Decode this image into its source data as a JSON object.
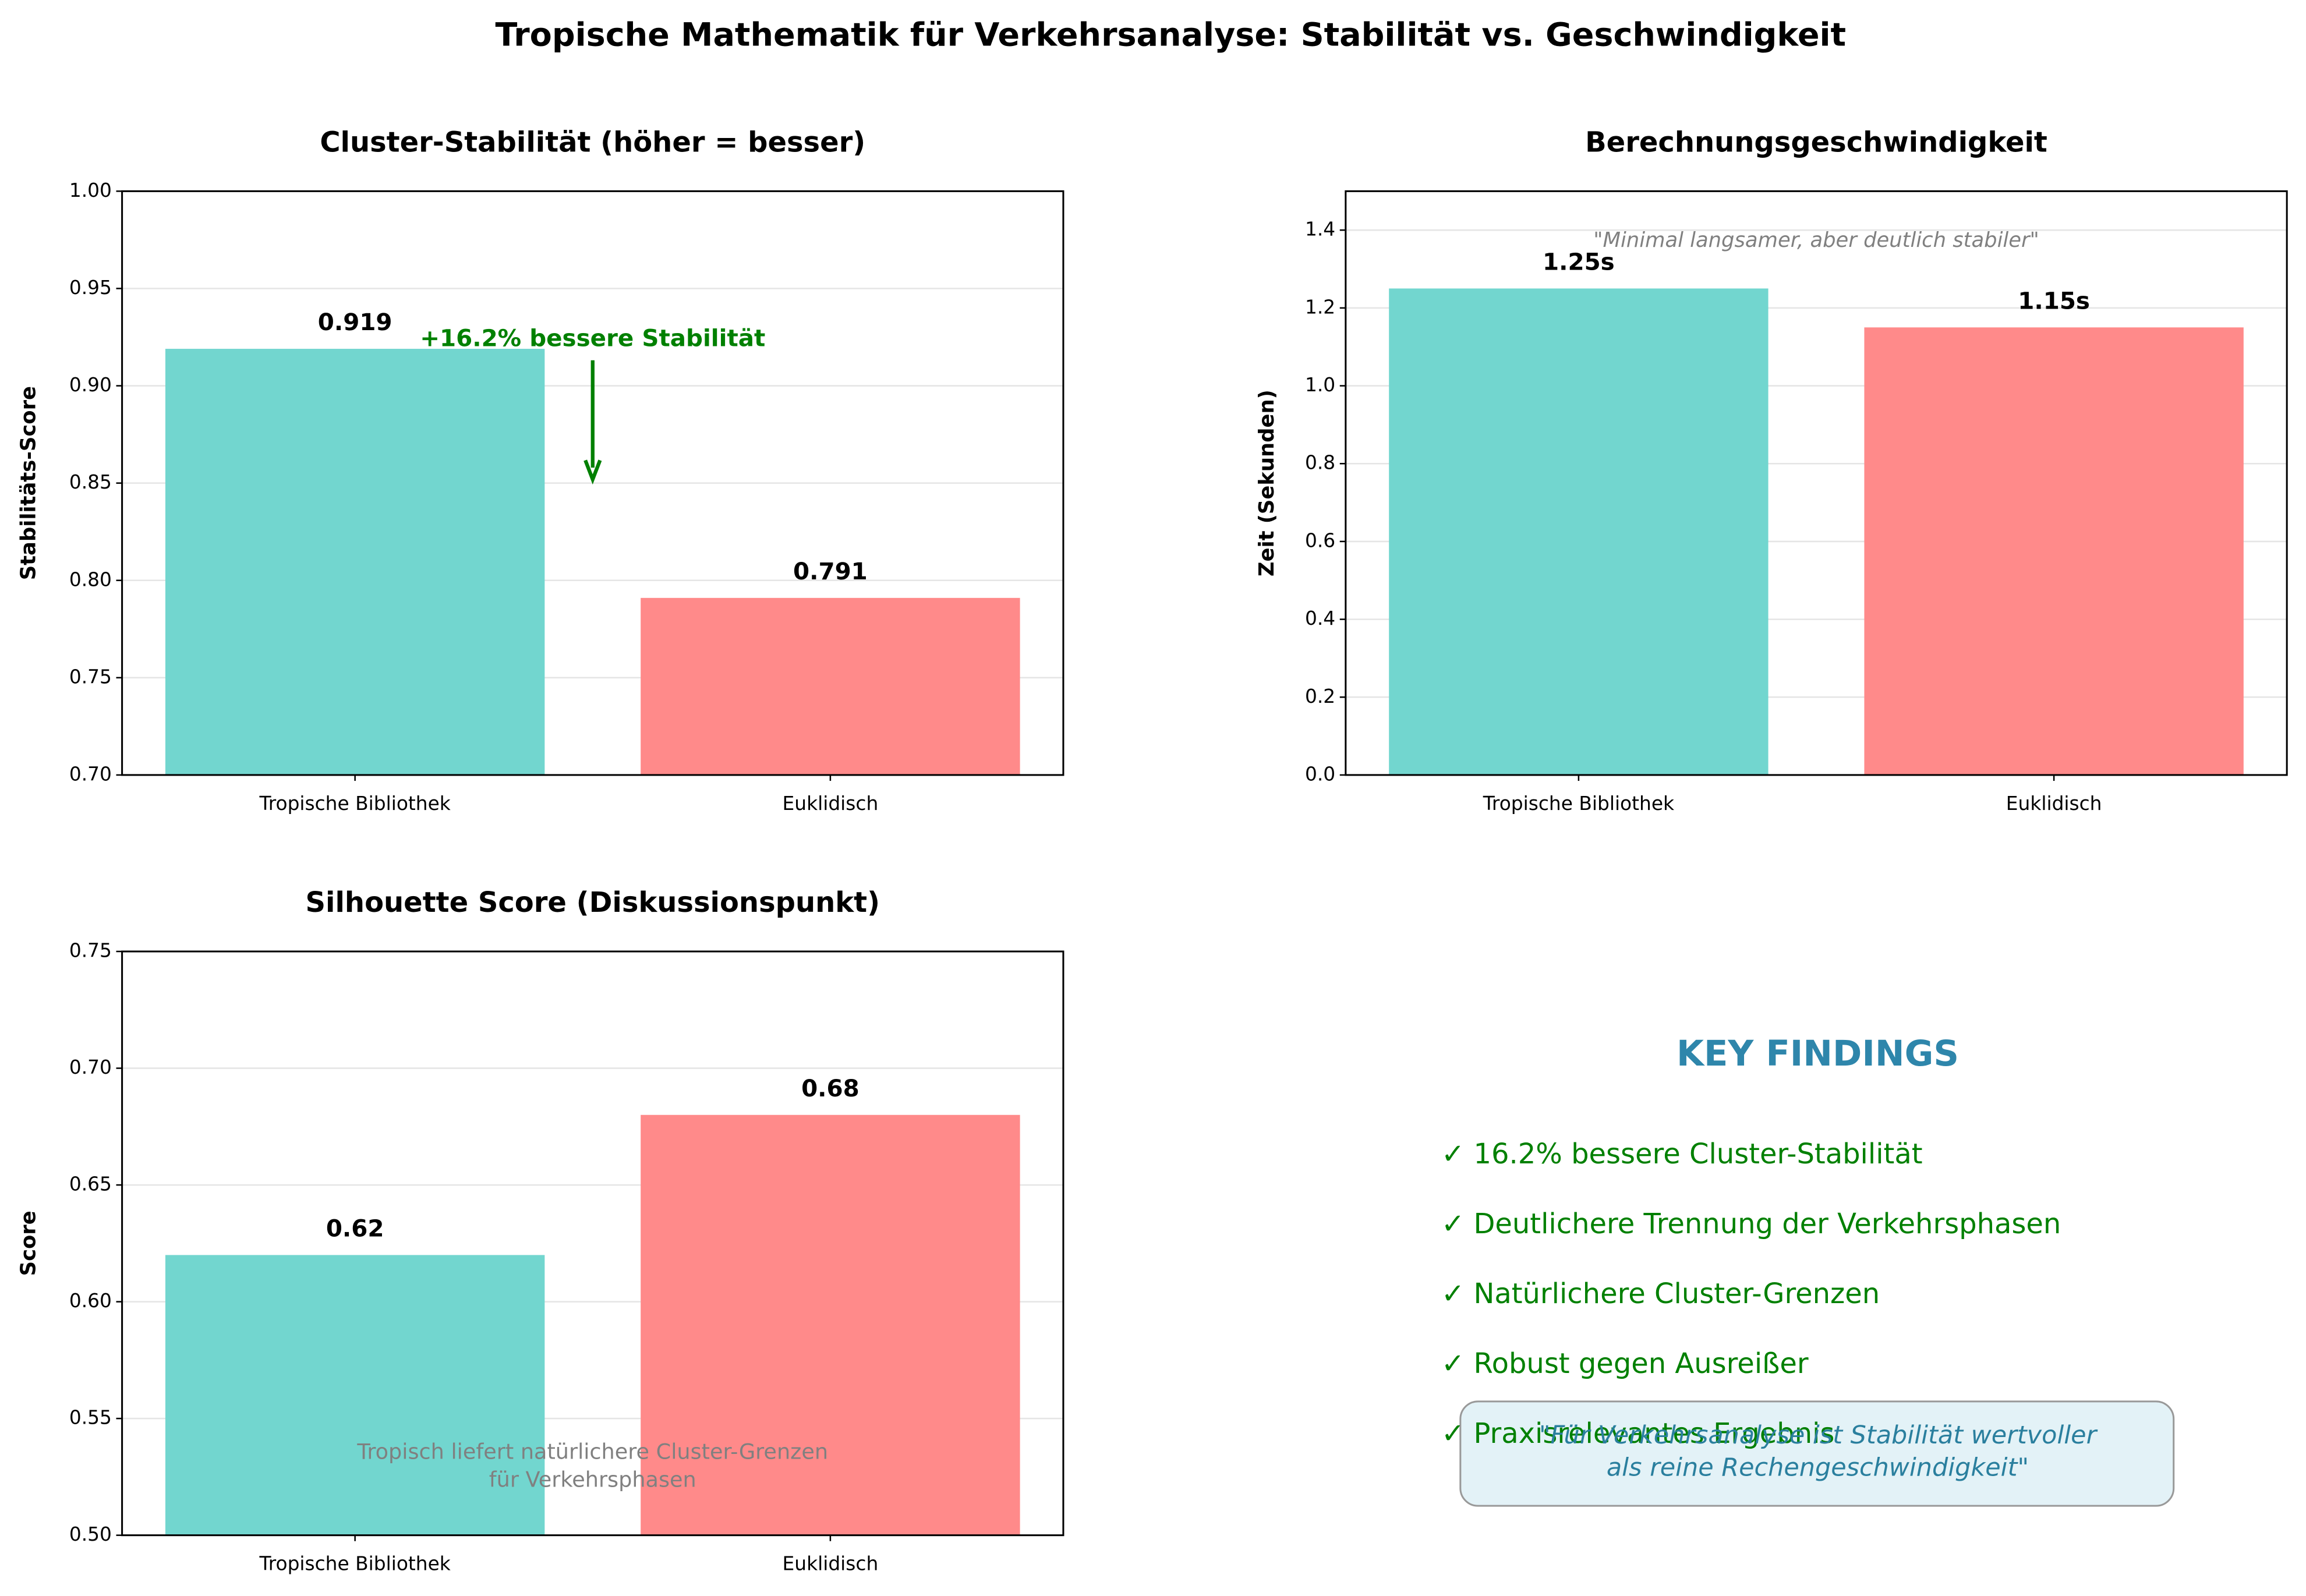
{
  "title": "Tropische Mathematik für Verkehrsanalyse: Stabilität vs. Geschwindigkeit",
  "chart_data": [
    {
      "type": "bar",
      "title": "Cluster-Stabilität (höher = besser)",
      "ylabel": "Stabilitäts-Score",
      "categories": [
        "Tropische Bibliothek",
        "Euklidisch"
      ],
      "values": [
        0.919,
        0.791
      ],
      "colors": [
        "#72d6cf",
        "#ff8a8a"
      ],
      "ylim": [
        0.7,
        1.0
      ],
      "yticks": [
        {
          "value": 0.7,
          "label": "0.70"
        },
        0.75,
        {
          "value": 0.8,
          "label": "0.80"
        },
        0.85,
        {
          "value": 0.9,
          "label": "0.90"
        },
        0.95,
        {
          "value": 1.0,
          "label": "1.00"
        }
      ],
      "grid": true,
      "annotation": "+16.2% bessere Stabilität",
      "annotation_color": "#008000"
    },
    {
      "type": "bar",
      "title": "Berechnungsgeschwindigkeit",
      "ylabel": "Zeit (Sekunden)",
      "categories": [
        "Tropische Bibliothek",
        "Euklidisch"
      ],
      "values": [
        1.25,
        1.15
      ],
      "value_labels": [
        "1.25s",
        "1.15s"
      ],
      "colors": [
        "#72d6cf",
        "#ff8a8a"
      ],
      "ylim": [
        0,
        1.5
      ],
      "yticks": [
        {
          "value": 0,
          "label": "0.0"
        },
        0.2,
        0.4,
        0.6,
        0.8,
        {
          "value": 1.0,
          "label": "1.0"
        },
        1.2,
        1.4
      ],
      "grid": true,
      "annotation": "\"Minimal langsamer, aber deutlich stabiler\"",
      "annotation_color": "#808080"
    },
    {
      "type": "bar",
      "title": "Silhouette Score (Diskussionspunkt)",
      "ylabel": "Score",
      "categories": [
        "Tropische Bibliothek",
        "Euklidisch"
      ],
      "values": [
        0.62,
        0.68
      ],
      "colors": [
        "#72d6cf",
        "#ff8a8a"
      ],
      "ylim": [
        0.5,
        0.75
      ],
      "yticks": [
        {
          "value": 0.5,
          "label": "0.50"
        },
        0.55,
        {
          "value": 0.6,
          "label": "0.60"
        },
        0.65,
        {
          "value": 0.7,
          "label": "0.70"
        },
        0.75
      ],
      "grid": true,
      "annotation": [
        "Tropisch liefert natürlichere Cluster-Grenzen",
        "für Verkehrsphasen"
      ],
      "annotation_color": "#808080"
    }
  ],
  "key_findings": {
    "title": "KEY FINDINGS",
    "items": [
      "✓ 16.2% bessere Cluster-Stabilität",
      "✓ Deutlichere Trennung der Verkehrsphasen",
      "✓ Natürlichere Cluster-Grenzen",
      "✓ Robust gegen Ausreißer",
      "✓ Praxisrelevantes Ergebnis"
    ],
    "quote": [
      "\"Für Verkehrsanalyse ist Stabilität wertvoller",
      "als reine Rechengeschwindigkeit\""
    ]
  }
}
